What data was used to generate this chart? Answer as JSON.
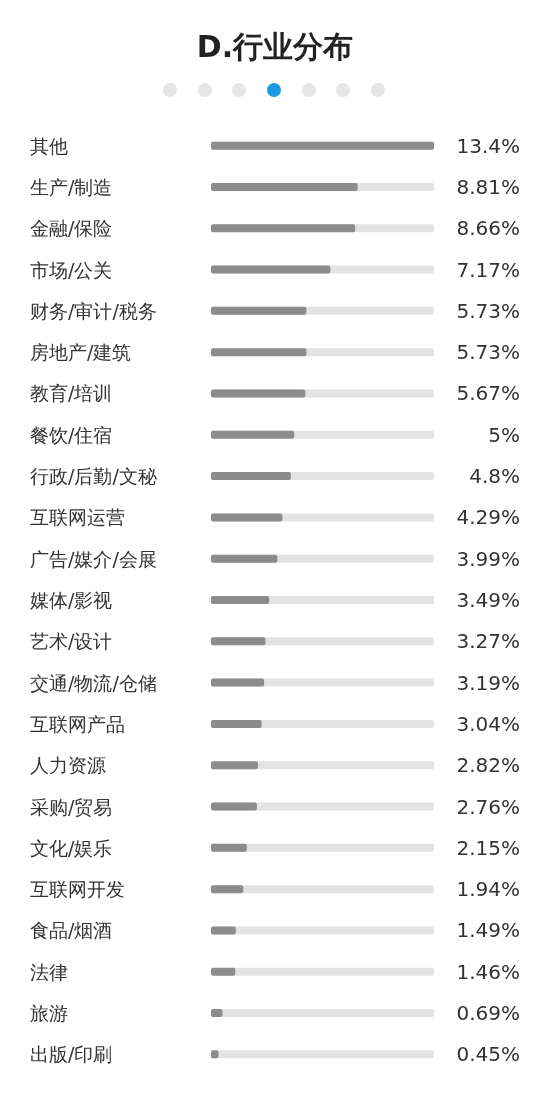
{
  "chart_data": {
    "type": "bar",
    "orientation": "horizontal",
    "title": "D.行业分布",
    "categories": [
      "其他",
      "生产/制造",
      "金融/保险",
      "市场/公关",
      "财务/审计/税务",
      "房地产/建筑",
      "教育/培训",
      "餐饮/住宿",
      "行政/后勤/文秘",
      "互联网运营",
      "广告/媒介/会展",
      "媒体/影视",
      "艺术/设计",
      "交通/物流/仓储",
      "互联网产品",
      "人力资源",
      "采购/贸易",
      "文化/娱乐",
      "互联网开发",
      "食品/烟酒",
      "法律",
      "旅游",
      "出版/印刷"
    ],
    "values": [
      13.4,
      8.81,
      8.66,
      7.17,
      5.73,
      5.73,
      5.67,
      5,
      4.8,
      4.29,
      3.99,
      3.49,
      3.27,
      3.19,
      3.04,
      2.82,
      2.76,
      2.15,
      1.94,
      1.49,
      1.46,
      0.69,
      0.45
    ],
    "value_labels": [
      "13.4%",
      "8.81%",
      "8.66%",
      "7.17%",
      "5.73%",
      "5.73%",
      "5.67%",
      "5%",
      "4.8%",
      "4.29%",
      "3.99%",
      "3.49%",
      "3.27%",
      "3.19%",
      "3.04%",
      "2.82%",
      "2.76%",
      "2.15%",
      "1.94%",
      "1.49%",
      "1.46%",
      "0.69%",
      "0.45%"
    ],
    "color": "#8c8c8c",
    "tick_labels": "y"
  }
}
